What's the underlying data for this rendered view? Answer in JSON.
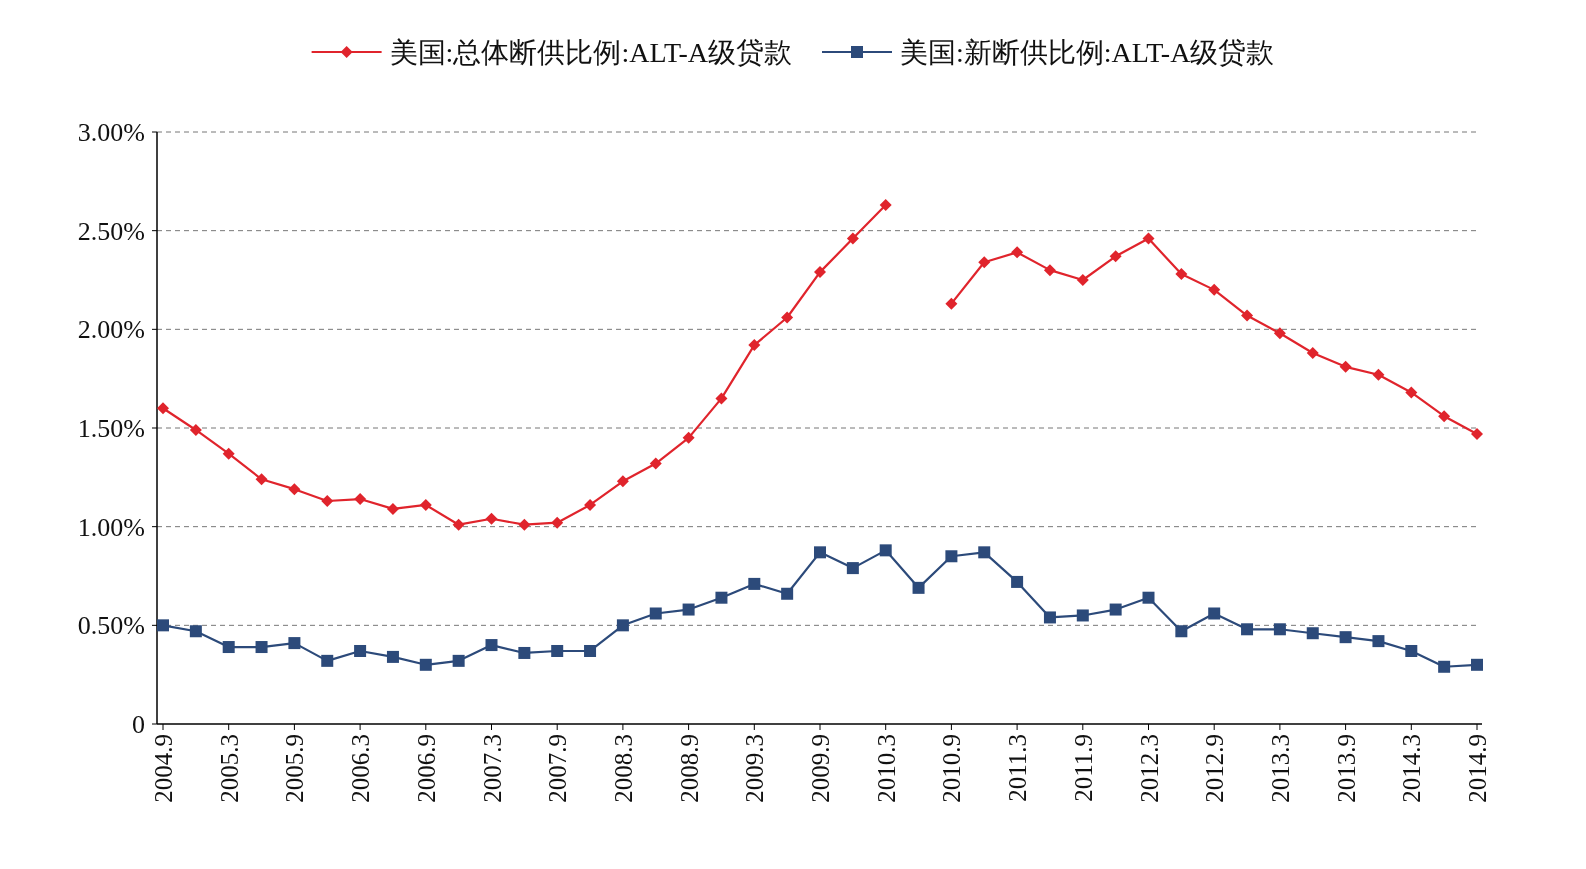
{
  "chart_data": {
    "type": "line",
    "categories": [
      "2004.9",
      null,
      "2005.3",
      null,
      "2005.9",
      null,
      "2006.3",
      null,
      "2006.9",
      null,
      "2007.3",
      null,
      "2007.9",
      null,
      "2008.3",
      null,
      "2008.9",
      null,
      "2009.3",
      null,
      "2009.9",
      null,
      "2010.3",
      null,
      "2010.9",
      null,
      "2011.3",
      null,
      "2011.9",
      null,
      "2012.3",
      null,
      "2012.9",
      null,
      "2013.3",
      null,
      "2013.9",
      null,
      "2014.3",
      null,
      "2014.9"
    ],
    "series": [
      {
        "name": "美国:总体断供比例:ALT-A级贷款",
        "color": "#e0242c",
        "marker": "diamond",
        "values": [
          1.6,
          1.49,
          1.37,
          1.24,
          1.19,
          1.13,
          1.14,
          1.09,
          1.11,
          1.01,
          1.04,
          1.01,
          1.02,
          1.11,
          1.23,
          1.32,
          1.45,
          1.65,
          1.92,
          2.06,
          2.29,
          2.46,
          2.63,
          null,
          2.13,
          2.34,
          2.39,
          2.3,
          2.25,
          2.37,
          2.46,
          2.28,
          2.2,
          2.07,
          1.98,
          1.88,
          1.81,
          1.77,
          1.68,
          1.56,
          1.47
        ]
      },
      {
        "name": "美国:新断供比例:ALT-A级贷款",
        "color": "#2c4a7a",
        "marker": "square",
        "values": [
          0.5,
          0.47,
          0.39,
          0.39,
          0.41,
          0.32,
          0.37,
          0.34,
          0.3,
          0.32,
          0.4,
          0.36,
          0.37,
          0.37,
          0.5,
          0.56,
          0.58,
          0.64,
          0.71,
          0.66,
          0.87,
          0.79,
          0.88,
          0.69,
          0.85,
          0.87,
          0.72,
          0.54,
          0.55,
          0.58,
          0.64,
          0.47,
          0.56,
          0.48,
          0.48,
          0.46,
          0.44,
          0.42,
          0.37,
          0.29,
          0.3
        ]
      }
    ],
    "ylim": [
      0,
      3
    ],
    "yticks": [
      {
        "value": 0,
        "label": "0"
      },
      {
        "value": 0.5,
        "label": "0.50%"
      },
      {
        "value": 1,
        "label": "1.00%"
      },
      {
        "value": 1.5,
        "label": "1.50%"
      },
      {
        "value": 2,
        "label": "2.00%"
      },
      {
        "value": 2.5,
        "label": "2.50%"
      },
      {
        "value": 3,
        "label": "3.00%"
      }
    ],
    "grid": "y",
    "legend": "top",
    "line_style": "solid"
  }
}
